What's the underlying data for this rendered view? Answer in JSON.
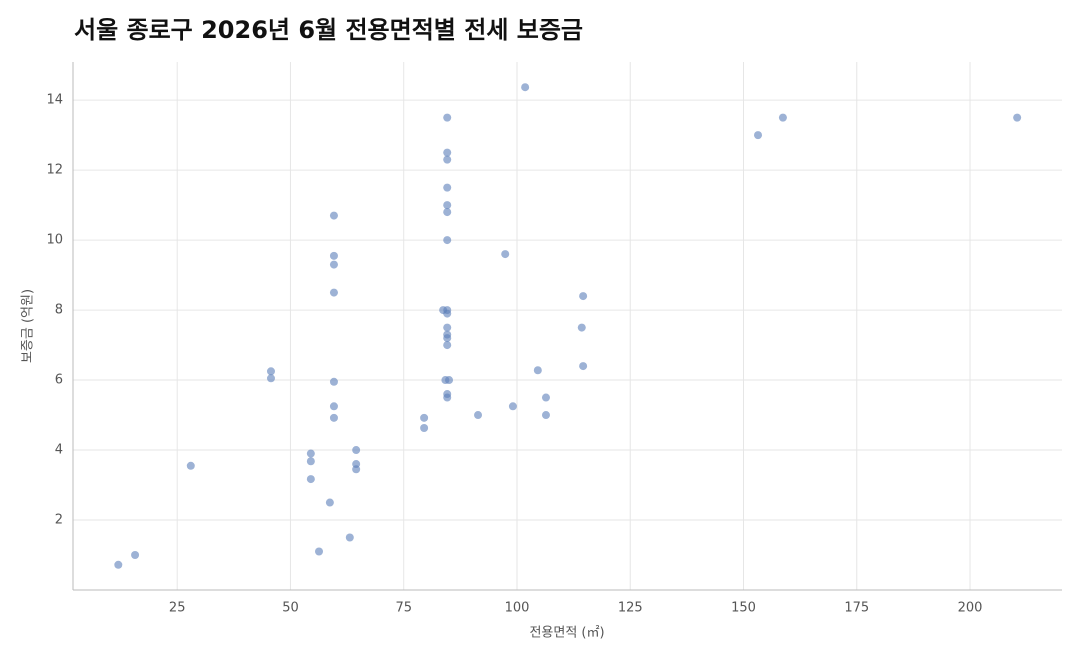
{
  "chart_data": {
    "type": "scatter",
    "title": "서울 종로구 2026년 6월 전용면적별 전세 보증금",
    "x_label": "전용면적 (㎡)",
    "y_label": "보증금 (억원)",
    "xlim": [
      2,
      220.3
    ],
    "ylim": [
      0,
      15.09
    ],
    "xticks": [
      25,
      50,
      75,
      100,
      125,
      150,
      175,
      200
    ],
    "yticks": [
      2,
      4,
      6,
      8,
      10,
      12,
      14
    ],
    "grid": true,
    "color": "#5b7fb9",
    "x": [
      12,
      15.7,
      28,
      45.7,
      45.7,
      54.5,
      54.5,
      54.5,
      56.3,
      58.7,
      59.6,
      59.6,
      59.6,
      59.6,
      59.6,
      59.6,
      59.6,
      63.1,
      64.5,
      64.5,
      64.5,
      79.5,
      79.5,
      83.7,
      84.6,
      84.6,
      84.6,
      84.6,
      84.6,
      84.6,
      84.6,
      84.6,
      84.6,
      84.6,
      84.6,
      84.6,
      84.6,
      84.2,
      85.0,
      84.6,
      84.6,
      91.4,
      97.4,
      99.1,
      101.8,
      104.6,
      106.4,
      106.4,
      114.3,
      114.6,
      114.6,
      153.2,
      158.7,
      210.4
    ],
    "y": [
      0.72,
      1.0,
      3.55,
      6.25,
      6.05,
      3.9,
      3.68,
      3.17,
      1.1,
      2.5,
      10.7,
      9.55,
      9.3,
      8.5,
      5.95,
      5.25,
      4.92,
      1.5,
      4.0,
      3.6,
      3.45,
      4.92,
      4.63,
      8.0,
      13.5,
      12.5,
      12.3,
      11.5,
      11.0,
      10.8,
      10.0,
      8.0,
      7.9,
      7.5,
      7.3,
      7.2,
      7.0,
      6.0,
      6.0,
      5.6,
      5.5,
      5.0,
      9.6,
      5.25,
      14.37,
      6.28,
      5.5,
      5.0,
      7.5,
      8.4,
      6.4,
      13.0,
      13.5,
      13.5
    ]
  }
}
